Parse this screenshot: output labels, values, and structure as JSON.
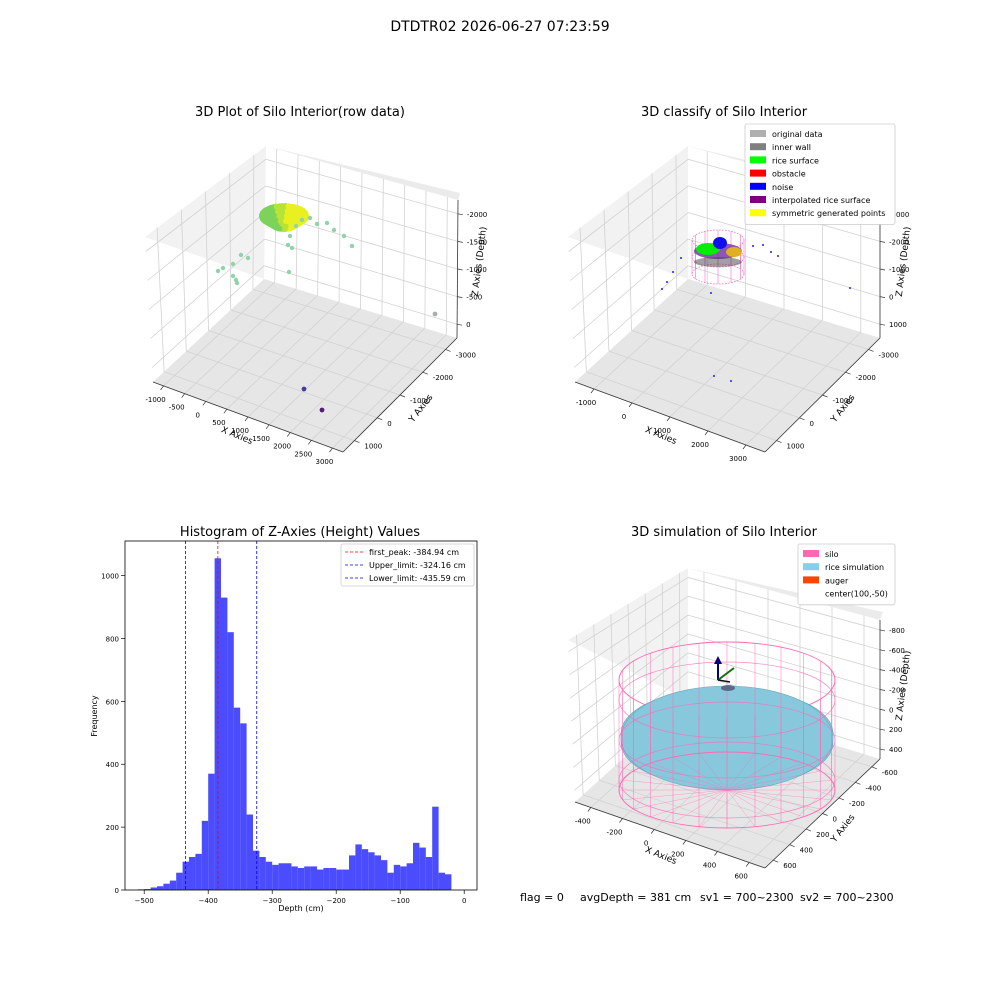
{
  "suptitle": "DTDTR02 2026-06-27 07:23:59",
  "chart_data": [
    {
      "id": "raw3d",
      "type": "scatter",
      "title": "3D Plot of Silo Interior(row data)",
      "xlabel": "X Axies",
      "ylabel": "Y Axies",
      "zlabel": "Z Axies (Depth)",
      "x_ticks": [
        "-1000",
        "-500",
        "0",
        "500",
        "1000",
        "1500",
        "2000",
        "2500",
        "3000"
      ],
      "y_ticks": [
        "1000",
        "0",
        "-1000",
        "-2000",
        "-3000"
      ],
      "z_ticks": [
        "0",
        "-500",
        "-1000",
        "-1500",
        "-2000"
      ]
    },
    {
      "id": "classify3d",
      "type": "scatter",
      "title": "3D classify of Silo Interior",
      "xlabel": "X Axies",
      "ylabel": "Y Axies",
      "zlabel": "Z Axies (Depth)",
      "x_ticks": [
        "-1000",
        "0",
        "1000",
        "2000",
        "3000"
      ],
      "y_ticks": [
        "1000",
        "0",
        "-1000",
        "-2000",
        "-3000"
      ],
      "z_ticks": [
        "1000",
        "0",
        "-1000",
        "-2000",
        "-3000"
      ],
      "legend": [
        {
          "label": "original data",
          "color": "#b0b0b0"
        },
        {
          "label": "inner wall",
          "color": "#808080"
        },
        {
          "label": "rice surface",
          "color": "#00ff00"
        },
        {
          "label": "obstacle",
          "color": "#ff0000"
        },
        {
          "label": "noise",
          "color": "#0000ff"
        },
        {
          "label": "interpolated rice surface",
          "color": "#800080"
        },
        {
          "label": "symmetric generated points",
          "color": "#ffff00"
        }
      ]
    },
    {
      "id": "histogram",
      "type": "bar",
      "title": "Histogram of Z-Axies (Height) Values",
      "xlabel": "Depth (cm)",
      "ylabel": "Frequency",
      "xlim": [
        -530,
        20
      ],
      "ylim": [
        0,
        1110
      ],
      "x_ticks": [
        -500,
        -400,
        -300,
        -200,
        -100,
        0
      ],
      "y_ticks": [
        0,
        200,
        400,
        600,
        800,
        1000
      ],
      "bin_width": 10,
      "bin_start": -510,
      "values": [
        2,
        3,
        8,
        12,
        20,
        30,
        55,
        90,
        105,
        115,
        220,
        370,
        1055,
        930,
        820,
        580,
        530,
        240,
        125,
        105,
        90,
        80,
        85,
        85,
        75,
        70,
        75,
        75,
        65,
        70,
        70,
        65,
        65,
        110,
        145,
        130,
        120,
        110,
        95,
        55,
        80,
        75,
        85,
        150,
        135,
        105,
        265,
        55,
        50
      ],
      "bar_color": "#3333ff",
      "vlines": [
        {
          "label": "first_peak: -384.94 cm",
          "x": -384.94,
          "color": "#ff0000"
        },
        {
          "label": "Upper_limit: -324.16 cm",
          "x": -324.16,
          "color": "#0000ff"
        },
        {
          "label": "Lower_limit: -435.59 cm",
          "x": -435.59,
          "color": "#0000ff"
        }
      ]
    },
    {
      "id": "simulation3d",
      "type": "area",
      "title": "3D simulation of Silo Interior",
      "xlabel": "X Axies",
      "ylabel": "Y Axies",
      "zlabel": "Z Axies (Depth)",
      "x_ticks": [
        "-400",
        "-200",
        "0",
        "200",
        "400",
        "600"
      ],
      "y_ticks": [
        "600",
        "400",
        "200",
        "0",
        "-200",
        "-400",
        "-600"
      ],
      "z_ticks": [
        "400",
        "200",
        "0",
        "-200",
        "-400",
        "-600",
        "-800"
      ],
      "legend": [
        {
          "label": "silo",
          "color": "#ff69b4"
        },
        {
          "label": "rice simulation",
          "color": "#87ceeb"
        },
        {
          "label": "auger",
          "color": "#ff4500"
        },
        {
          "label": "center(100,-50)",
          "color": ""
        }
      ]
    }
  ],
  "status": {
    "flag": "flag = 0",
    "avg_depth": "avgDepth = 381 cm",
    "sv1": "sv1 = 700~2300",
    "sv2": "sv2 = 700~2300"
  }
}
